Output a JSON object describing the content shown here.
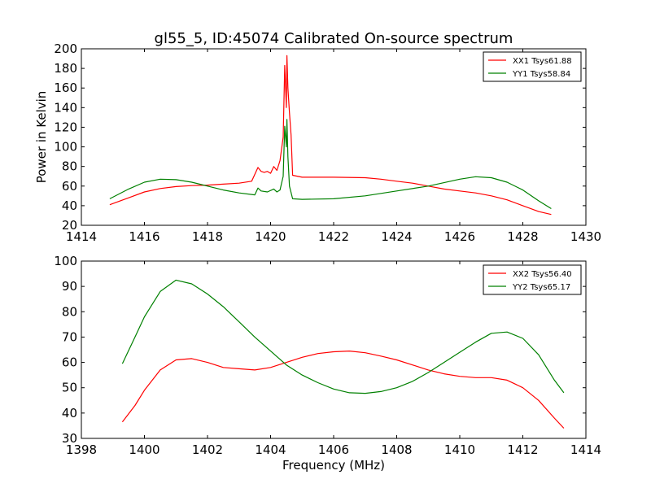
{
  "figure": {
    "title": "gl55_5, ID:45074 Calibrated On-source spectrum"
  },
  "chart_data": [
    {
      "type": "line",
      "title": "gl55_5, ID:45074 Calibrated On-source spectrum",
      "xlabel": "",
      "ylabel": "Power in Kelvin",
      "xlim": [
        1414,
        1430
      ],
      "ylim": [
        20,
        200
      ],
      "xticks": [
        "1414",
        "1416",
        "1418",
        "1420",
        "1422",
        "1424",
        "1426",
        "1428",
        "1430"
      ],
      "yticks": [
        "20",
        "40",
        "60",
        "80",
        "100",
        "120",
        "140",
        "160",
        "180",
        "200"
      ],
      "grid": false,
      "legend_position": "top-right",
      "series": [
        {
          "name": "XX1 Tsys61.88",
          "color": "#ff0000",
          "points": [
            [
              1414.9,
              41
            ],
            [
              1415.5,
              48
            ],
            [
              1416.0,
              54
            ],
            [
              1416.5,
              57.5
            ],
            [
              1417.0,
              59.5
            ],
            [
              1417.5,
              60.5
            ],
            [
              1418.0,
              61
            ],
            [
              1418.5,
              62
            ],
            [
              1419.0,
              63
            ],
            [
              1419.4,
              65
            ],
            [
              1419.6,
              79
            ],
            [
              1419.7,
              75
            ],
            [
              1419.8,
              74
            ],
            [
              1419.9,
              75
            ],
            [
              1420.0,
              73
            ],
            [
              1420.1,
              80
            ],
            [
              1420.2,
              76
            ],
            [
              1420.3,
              86
            ],
            [
              1420.4,
              110
            ],
            [
              1420.45,
              183
            ],
            [
              1420.5,
              140
            ],
            [
              1420.52,
              193
            ],
            [
              1420.55,
              160
            ],
            [
              1420.6,
              135
            ],
            [
              1420.65,
              112
            ],
            [
              1420.7,
              71
            ],
            [
              1421.0,
              69
            ],
            [
              1422.0,
              69
            ],
            [
              1423.0,
              68.5
            ],
            [
              1423.5,
              67
            ],
            [
              1424.0,
              65
            ],
            [
              1424.5,
              63
            ],
            [
              1425.0,
              60
            ],
            [
              1425.5,
              57
            ],
            [
              1426.0,
              55
            ],
            [
              1426.5,
              53
            ],
            [
              1427.0,
              50
            ],
            [
              1427.5,
              46
            ],
            [
              1428.0,
              40
            ],
            [
              1428.5,
              34
            ],
            [
              1428.9,
              31
            ]
          ]
        },
        {
          "name": "YY1 Tsys58.84",
          "color": "#008000",
          "points": [
            [
              1414.9,
              47
            ],
            [
              1415.5,
              57
            ],
            [
              1416.0,
              64
            ],
            [
              1416.5,
              67
            ],
            [
              1417.0,
              66.5
            ],
            [
              1417.5,
              64
            ],
            [
              1418.0,
              60
            ],
            [
              1418.5,
              56
            ],
            [
              1419.0,
              53
            ],
            [
              1419.5,
              51
            ],
            [
              1419.6,
              58
            ],
            [
              1419.7,
              55
            ],
            [
              1419.9,
              54
            ],
            [
              1420.1,
              57
            ],
            [
              1420.2,
              54
            ],
            [
              1420.3,
              56
            ],
            [
              1420.4,
              70
            ],
            [
              1420.45,
              121
            ],
            [
              1420.5,
              100
            ],
            [
              1420.52,
              128
            ],
            [
              1420.55,
              90
            ],
            [
              1420.6,
              60
            ],
            [
              1420.7,
              47
            ],
            [
              1421.0,
              46.5
            ],
            [
              1422.0,
              47
            ],
            [
              1423.0,
              50
            ],
            [
              1424.0,
              55
            ],
            [
              1425.0,
              60
            ],
            [
              1426.0,
              67
            ],
            [
              1426.5,
              69.5
            ],
            [
              1427.0,
              68.5
            ],
            [
              1427.5,
              64
            ],
            [
              1428.0,
              56
            ],
            [
              1428.5,
              45
            ],
            [
              1428.9,
              37
            ]
          ]
        }
      ]
    },
    {
      "type": "line",
      "title": "",
      "xlabel": "Frequency (MHz)",
      "ylabel": "",
      "xlim": [
        1398,
        1414
      ],
      "ylim": [
        30,
        100
      ],
      "xticks": [
        "1398",
        "1400",
        "1402",
        "1404",
        "1406",
        "1408",
        "1410",
        "1412",
        "1414"
      ],
      "yticks": [
        "30",
        "40",
        "50",
        "60",
        "70",
        "80",
        "90",
        "100"
      ],
      "grid": false,
      "legend_position": "top-right",
      "series": [
        {
          "name": "XX2 Tsys56.40",
          "color": "#ff0000",
          "points": [
            [
              1399.3,
              36.5
            ],
            [
              1399.7,
              43
            ],
            [
              1400.0,
              49
            ],
            [
              1400.5,
              57
            ],
            [
              1401.0,
              61
            ],
            [
              1401.5,
              61.5
            ],
            [
              1402.0,
              60
            ],
            [
              1402.5,
              58
            ],
            [
              1403.0,
              57.5
            ],
            [
              1403.5,
              57
            ],
            [
              1404.0,
              58
            ],
            [
              1404.5,
              60
            ],
            [
              1405.0,
              62
            ],
            [
              1405.5,
              63.5
            ],
            [
              1406.0,
              64.2
            ],
            [
              1406.5,
              64.5
            ],
            [
              1407.0,
              63.8
            ],
            [
              1407.5,
              62.5
            ],
            [
              1408.0,
              61
            ],
            [
              1408.5,
              59
            ],
            [
              1409.0,
              57
            ],
            [
              1409.5,
              55.5
            ],
            [
              1410.0,
              54.5
            ],
            [
              1410.5,
              54
            ],
            [
              1411.0,
              54
            ],
            [
              1411.5,
              53
            ],
            [
              1412.0,
              50
            ],
            [
              1412.5,
              45
            ],
            [
              1413.0,
              38
            ],
            [
              1413.3,
              34
            ]
          ]
        },
        {
          "name": "YY2 Tsys65.17",
          "color": "#008000",
          "points": [
            [
              1399.3,
              59.5
            ],
            [
              1399.7,
              70
            ],
            [
              1400.0,
              78
            ],
            [
              1400.5,
              88
            ],
            [
              1401.0,
              92.5
            ],
            [
              1401.5,
              91
            ],
            [
              1402.0,
              87
            ],
            [
              1402.5,
              82
            ],
            [
              1403.0,
              76
            ],
            [
              1403.5,
              70
            ],
            [
              1404.0,
              64.5
            ],
            [
              1404.5,
              59
            ],
            [
              1405.0,
              55
            ],
            [
              1405.5,
              52
            ],
            [
              1406.0,
              49.5
            ],
            [
              1406.5,
              48
            ],
            [
              1407.0,
              47.8
            ],
            [
              1407.5,
              48.5
            ],
            [
              1408.0,
              50
            ],
            [
              1408.5,
              52.5
            ],
            [
              1409.0,
              56
            ],
            [
              1409.5,
              60
            ],
            [
              1410.0,
              64
            ],
            [
              1410.5,
              68
            ],
            [
              1411.0,
              71.5
            ],
            [
              1411.5,
              72
            ],
            [
              1412.0,
              69.5
            ],
            [
              1412.5,
              63
            ],
            [
              1413.0,
              53
            ],
            [
              1413.3,
              48
            ]
          ]
        }
      ]
    }
  ]
}
